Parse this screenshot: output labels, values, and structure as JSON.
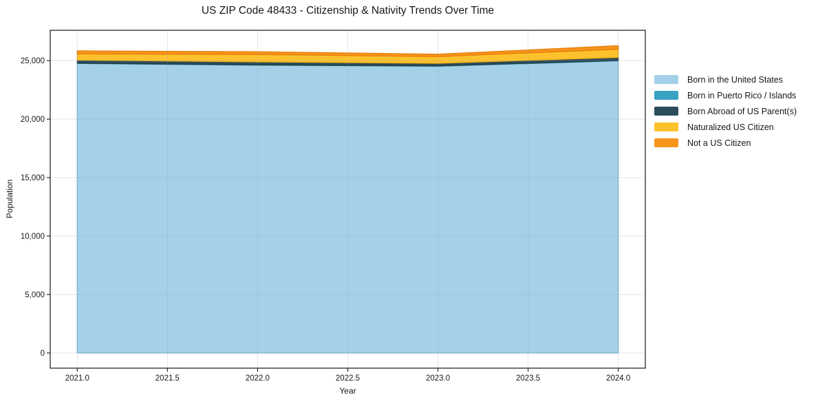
{
  "chart_data": {
    "type": "area",
    "stacked": true,
    "title": "US ZIP Code 48433 - Citizenship & Nativity Trends Over Time",
    "xlabel": "Year",
    "ylabel": "Population",
    "x": [
      2021,
      2022,
      2023,
      2024
    ],
    "series": [
      {
        "name": "Born in the United States",
        "color": "#a4d1e8",
        "edge": "#7db8d8",
        "values": [
          24760,
          24615,
          24525,
          24980
        ]
      },
      {
        "name": "Born in Puerto Rico / Islands",
        "color": "#39a2c2",
        "edge": "#2e8db0",
        "values": [
          25,
          25,
          25,
          35
        ]
      },
      {
        "name": "Born Abroad of US Parent(s)",
        "color": "#2b4d59",
        "edge": "#223d47",
        "values": [
          265,
          255,
          225,
          265
        ]
      },
      {
        "name": "Naturalized US Citizen",
        "color": "#fcc22d",
        "edge": "#f0ad14",
        "values": [
          530,
          635,
          575,
          705
        ]
      },
      {
        "name": "Not a US Citizen",
        "color": "#f7941e",
        "edge": "#e67e07",
        "values": [
          260,
          235,
          200,
          295
        ]
      }
    ],
    "xticks": {
      "values": [
        2021.0,
        2021.5,
        2022.0,
        2022.5,
        2023.0,
        2023.5,
        2024.0
      ],
      "labels": [
        "2021.0",
        "2021.5",
        "2022.0",
        "2022.5",
        "2023.0",
        "2023.5",
        "2024.0"
      ]
    },
    "yticks": {
      "values": [
        0,
        5000,
        10000,
        15000,
        20000,
        25000
      ],
      "labels": [
        "0",
        "5,000",
        "10,000",
        "15,000",
        "20,000",
        "25,000"
      ]
    },
    "xlim": [
      2020.85,
      2024.15
    ],
    "ylim": [
      -1300,
      27600
    ],
    "grid": true,
    "legend_position": "right"
  }
}
